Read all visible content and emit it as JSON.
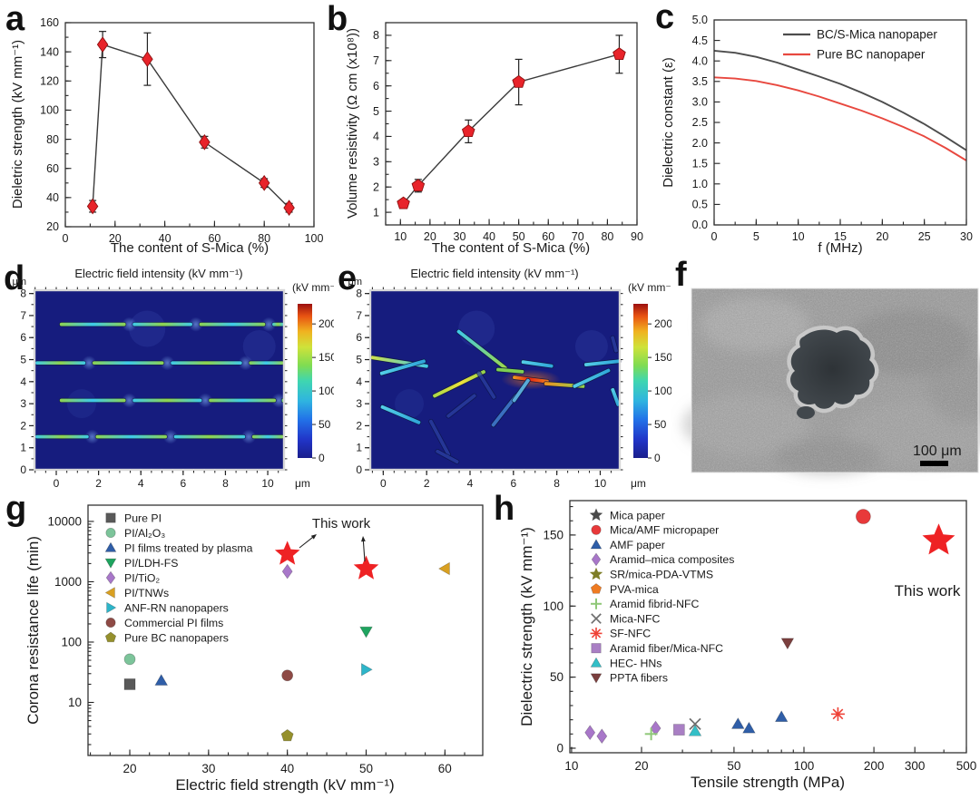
{
  "figure": {
    "background": "#ffffff"
  },
  "chart_data": [
    {
      "id": "a",
      "letter": "a",
      "type": "scatter-line",
      "xlabel": "The content of S-Mica (%)",
      "ylabel": "Dieletric strength (kV mm⁻¹)",
      "x_range": [
        0,
        100
      ],
      "x_major": 20,
      "x_minor": 10,
      "x_dec": 0,
      "y_range": [
        20,
        160
      ],
      "y_major": 20,
      "y_minor": 10,
      "y_dec": 0,
      "marker": "diamond",
      "marker_color": "#e8232a",
      "marker_edge": "#8b1010",
      "line_color": "#3a3a3a",
      "points": [
        {
          "x": 11,
          "y": 34,
          "err": 4
        },
        {
          "x": 15,
          "y": 145,
          "err": 9
        },
        {
          "x": 33,
          "y": 135,
          "err": 18
        },
        {
          "x": 56,
          "y": 78,
          "err": 4
        },
        {
          "x": 80,
          "y": 50,
          "err": 3
        },
        {
          "x": 90,
          "y": 33,
          "err": 3
        }
      ]
    },
    {
      "id": "b",
      "letter": "b",
      "type": "scatter-line",
      "xlabel": "The content of S-Mica (%)",
      "ylabel": "Volume resistivity (Ω cm (x10⁸))",
      "x_range": [
        5,
        90
      ],
      "x_major": 10,
      "x_minor": 5,
      "x_dec": 0,
      "y_range": [
        0.5,
        8.5
      ],
      "y_major": 1,
      "y_minor": 0.5,
      "y_dec": 0,
      "marker": "pentagon",
      "marker_color": "#e8232a",
      "marker_edge": "#8b1010",
      "line_color": "#3a3a3a",
      "points": [
        {
          "x": 11,
          "y": 1.35,
          "err": 0.15
        },
        {
          "x": 16,
          "y": 2.05,
          "err": 0.25
        },
        {
          "x": 33,
          "y": 4.2,
          "err": 0.45
        },
        {
          "x": 50,
          "y": 6.15,
          "err": 0.9
        },
        {
          "x": 84,
          "y": 7.25,
          "err": 0.75
        }
      ]
    },
    {
      "id": "c",
      "letter": "c",
      "type": "lines",
      "xlabel": "f (MHz)",
      "ylabel": "Dielectric constant (ε)",
      "x_range": [
        0,
        30
      ],
      "x_major": 5,
      "x_minor": 2.5,
      "x_dec": 0,
      "y_range": [
        0,
        5
      ],
      "y_major": 0.5,
      "y_minor": 0,
      "y_dec": 1,
      "x": [
        0,
        2.5,
        5,
        7.5,
        10,
        12.5,
        15,
        17.5,
        20,
        22.5,
        25,
        27.5,
        30
      ],
      "series": [
        {
          "name": "BC/S-Mica nanopaper",
          "color": "#4d4d4d",
          "y": [
            4.25,
            4.2,
            4.1,
            3.96,
            3.79,
            3.62,
            3.44,
            3.23,
            3.0,
            2.74,
            2.46,
            2.15,
            1.82
          ]
        },
        {
          "name": "Pure BC nanopaper",
          "color": "#e8483f",
          "y": [
            3.6,
            3.57,
            3.51,
            3.41,
            3.28,
            3.13,
            2.96,
            2.79,
            2.6,
            2.39,
            2.16,
            1.88,
            1.57
          ]
        }
      ]
    },
    {
      "id": "d",
      "letter": "d",
      "type": "field-map",
      "title": "Electric field intensity (kV mm⁻¹)",
      "axis_unit": "μm",
      "arrangement": "aligned",
      "x_range": [
        -1.03,
        10.77
      ],
      "x_major": 2,
      "x_minor": 0.5,
      "x_label_min": 0,
      "x_label_max": 10,
      "y_range": [
        0,
        8.15
      ],
      "y_major": 1,
      "y_minor": 0.5,
      "colorbar": {
        "label": "(kV mm⁻¹)",
        "ticks": [
          0,
          50,
          100,
          150,
          200
        ],
        "max": 230
      },
      "rows": [
        {
          "y": 6.6,
          "segments": [
            [
              0.15,
              3.3
            ],
            [
              3.6,
              6.45
            ],
            [
              6.75,
              9.9
            ],
            [
              10.2,
              10.77
            ]
          ]
        },
        {
          "y": 4.85,
          "segments": [
            [
              -1.0,
              1.4
            ],
            [
              1.7,
              5.1
            ],
            [
              5.4,
              8.8
            ],
            [
              9.1,
              10.77
            ]
          ]
        },
        {
          "y": 3.15,
          "segments": [
            [
              0.15,
              3.3
            ],
            [
              3.6,
              6.9
            ],
            [
              7.2,
              10.4
            ],
            [
              10.65,
              10.77
            ]
          ]
        },
        {
          "y": 1.5,
          "segments": [
            [
              -1.0,
              1.55
            ],
            [
              1.85,
              5.25
            ],
            [
              5.55,
              8.95
            ],
            [
              9.25,
              10.77
            ]
          ]
        }
      ]
    },
    {
      "id": "e",
      "letter": "e",
      "type": "field-map",
      "title": "Electric field intensity (kV mm⁻¹)",
      "axis_unit": "μm",
      "arrangement": "random",
      "x_range": [
        -0.6,
        10.9
      ],
      "x_major": 2,
      "x_minor": 0.5,
      "x_label_min": 0,
      "x_label_max": 10,
      "y_range": [
        0,
        8.15
      ],
      "y_major": 1,
      "y_minor": 0.5,
      "colorbar": {
        "label": "(kV mm⁻¹)",
        "ticks": [
          0,
          50,
          100,
          150,
          200
        ],
        "max": 230
      },
      "platelets": [
        {
          "cx": 0.75,
          "cy": 4.9,
          "len": 2.7,
          "ang": -9,
          "kind": "yellowGreen"
        },
        {
          "cx": 0.9,
          "cy": 4.65,
          "len": 2.2,
          "ang": 16,
          "kind": "cyanG"
        },
        {
          "cx": 3.5,
          "cy": 3.9,
          "len": 2.7,
          "ang": 26,
          "kind": "yellow"
        },
        {
          "cx": 4.55,
          "cy": 5.45,
          "len": 2.9,
          "ang": -38,
          "kind": "cyanGreen"
        },
        {
          "cx": 5.85,
          "cy": 4.5,
          "len": 1.3,
          "ang": -5,
          "kind": "green"
        },
        {
          "cx": 6.8,
          "cy": 4.1,
          "len": 1.7,
          "ang": -7,
          "kind": "red"
        },
        {
          "cx": 8.35,
          "cy": 3.85,
          "len": 1.9,
          "ang": -4,
          "kind": "orange"
        },
        {
          "cx": 9.6,
          "cy": 4.15,
          "len": 1.9,
          "ang": 25,
          "kind": "cyanG"
        },
        {
          "cx": 7.1,
          "cy": 4.8,
          "len": 1.5,
          "ang": -8,
          "kind": "cyanG"
        },
        {
          "cx": 10.1,
          "cy": 4.85,
          "len": 1.7,
          "ang": 6,
          "kind": "cyanG"
        },
        {
          "cx": 0.8,
          "cy": 2.5,
          "len": 2.0,
          "ang": -23,
          "kind": "cyanG"
        },
        {
          "cx": 2.6,
          "cy": 1.45,
          "len": 1.9,
          "ang": -62,
          "kind": "dim"
        },
        {
          "cx": 3.6,
          "cy": 2.9,
          "len": 1.7,
          "ang": 38,
          "kind": "dim"
        },
        {
          "cx": 5.6,
          "cy": 2.7,
          "len": 1.9,
          "ang": 52,
          "kind": "dimCyan"
        },
        {
          "cx": 6.35,
          "cy": 3.6,
          "len": 1.3,
          "ang": 55,
          "kind": "cyanFaint"
        },
        {
          "cx": 2.95,
          "cy": 0.6,
          "len": 1.2,
          "ang": -28,
          "kind": "dim"
        },
        {
          "cx": 10.65,
          "cy": 5.7,
          "len": 0.8,
          "ang": -75,
          "kind": "dim"
        },
        {
          "cx": 10.7,
          "cy": 3.3,
          "len": 0.9,
          "ang": -70,
          "kind": "cyanG"
        },
        {
          "cx": 4.75,
          "cy": 3.85,
          "len": 1.5,
          "ang": -58,
          "kind": "dim"
        }
      ]
    },
    {
      "id": "f",
      "letter": "f",
      "type": "sem-image",
      "description": "SEM micrograph of breakdown hole in nanopaper",
      "scale_bar": {
        "text": "100 μm"
      }
    },
    {
      "id": "g",
      "letter": "g",
      "type": "scatter",
      "xlabel": "Electric field strength (kV mm⁻¹)",
      "ylabel": "Corona resistance life (min)",
      "x_scale": "linear",
      "x_range": [
        14.7,
        64.8
      ],
      "x_major": 10,
      "x_minor": 2.5,
      "x_dec": 0,
      "y_scale": "log",
      "y_range": [
        1.32,
        18600
      ],
      "y_decades": [
        10,
        100,
        1000,
        10000
      ],
      "annotation": {
        "text": "This work"
      },
      "legend": [
        {
          "label": "Pure PI",
          "marker": "square",
          "color": "#595959"
        },
        {
          "label": "PI/Al₂O₃",
          "marker": "circle",
          "color": "#7cc49a"
        },
        {
          "label": "PI films treated by plasma",
          "marker": "triangle-up",
          "color": "#2f5ea8"
        },
        {
          "label": "PI/LDH-FS",
          "marker": "triangle-down",
          "color": "#1ea45f"
        },
        {
          "label": "PI/TiO₂",
          "marker": "diamond",
          "color": "#a877c9"
        },
        {
          "label": "PI/TNWs",
          "marker": "triangle-left",
          "color": "#d9a021"
        },
        {
          "label": "ANF-RN nanopapers",
          "marker": "triangle-right",
          "color": "#2db5c9"
        },
        {
          "label": "Commercial PI films",
          "marker": "circle",
          "color": "#8e4a45"
        },
        {
          "label": "Pure BC nanopapers",
          "marker": "pentagon",
          "color": "#95902c"
        }
      ],
      "points": [
        {
          "series": "Pure PI",
          "x": 20,
          "y": 20
        },
        {
          "series": "PI/Al₂O₃",
          "x": 20,
          "y": 52
        },
        {
          "series": "PI films treated by plasma",
          "x": 24,
          "y": 23
        },
        {
          "series": "PI/LDH-FS",
          "x": 50,
          "y": 150
        },
        {
          "series": "PI/TiO₂",
          "x": 40,
          "y": 1480
        },
        {
          "series": "PI/TNWs",
          "x": 60,
          "y": 1650
        },
        {
          "series": "ANF-RN nanopapers",
          "x": 50,
          "y": 35
        },
        {
          "series": "Commercial PI films",
          "x": 40,
          "y": 28
        },
        {
          "series": "Pure BC nanopapers",
          "x": 40,
          "y": 2.8
        },
        {
          "series": "This work",
          "x": 40,
          "y": 2880,
          "marker": "star",
          "color": "#ee2224",
          "size": 10
        },
        {
          "series": "This work",
          "x": 50,
          "y": 1650,
          "marker": "star",
          "color": "#ee2224",
          "size": 10
        }
      ]
    },
    {
      "id": "h",
      "letter": "h",
      "type": "scatter",
      "xlabel": "Tensile strength (MPa)",
      "ylabel": "Dielectric strength (kV mm⁻¹)",
      "x_scale": "log",
      "x_range": [
        9.83,
        500
      ],
      "x_labeled": [
        10,
        20,
        50,
        100,
        200,
        300,
        500
      ],
      "y_scale": "linear",
      "y_range": [
        -3.2,
        174.2
      ],
      "y_major": 50,
      "y_minor": 10,
      "y_dec": 0,
      "annotation": {
        "text": "This work"
      },
      "legend": [
        {
          "label": "Mica paper",
          "marker": "star",
          "color": "#4a4a4a"
        },
        {
          "label": "Mica/AMF micropaper",
          "marker": "circle",
          "color": "#e8393a"
        },
        {
          "label": "AMF paper",
          "marker": "triangle-up",
          "color": "#2f5ea8"
        },
        {
          "label": "Aramid–mica composites",
          "marker": "diamond",
          "color": "#a877c9"
        },
        {
          "label": "SR/mica-PDA-VTMS",
          "marker": "star",
          "color": "#7d7d26"
        },
        {
          "label": "PVA-mica",
          "marker": "pentagon",
          "color": "#ef7b22"
        },
        {
          "label": "Aramid fibrid-NFC",
          "marker": "plus",
          "color": "#8fc878"
        },
        {
          "label": "Mica-NFC",
          "marker": "x",
          "color": "#6e6e6e"
        },
        {
          "label": "SF-NFC",
          "marker": "asterisk",
          "color": "#ef4136"
        },
        {
          "label": "Aramid fiber/Mica-NFC",
          "marker": "square",
          "color": "#a97fc4"
        },
        {
          "label": "HEC- HNs",
          "marker": "triangle-up",
          "color": "#33bfc7"
        },
        {
          "label": "PPTA fibers",
          "marker": "triangle-down",
          "color": "#7b3f3e"
        }
      ],
      "points": [
        {
          "series": "Aramid–mica composites",
          "x": 12,
          "y": 11
        },
        {
          "series": "Aramid–mica composites",
          "x": 13.5,
          "y": 8.5
        },
        {
          "series": "Aramid–mica composites",
          "x": 23,
          "y": 14
        },
        {
          "series": "Aramid fibrid-NFC",
          "x": 22,
          "y": 10
        },
        {
          "series": "Aramid fiber/Mica-NFC",
          "x": 29,
          "y": 13
        },
        {
          "series": "Mica-NFC",
          "x": 34,
          "y": 17
        },
        {
          "series": "HEC- HNs",
          "x": 34,
          "y": 12
        },
        {
          "series": "AMF paper",
          "x": 52,
          "y": 17
        },
        {
          "series": "AMF paper",
          "x": 58,
          "y": 14
        },
        {
          "series": "AMF paper",
          "x": 80,
          "y": 22
        },
        {
          "series": "PPTA fibers",
          "x": 85,
          "y": 74
        },
        {
          "series": "SF-NFC",
          "x": 140,
          "y": 24
        },
        {
          "series": "Mica/AMF micropaper",
          "x": 180,
          "y": 163,
          "size": 8
        },
        {
          "series": "This work",
          "x": 380,
          "y": 146,
          "marker": "star",
          "color": "#ee2224",
          "size": 13
        }
      ]
    }
  ]
}
